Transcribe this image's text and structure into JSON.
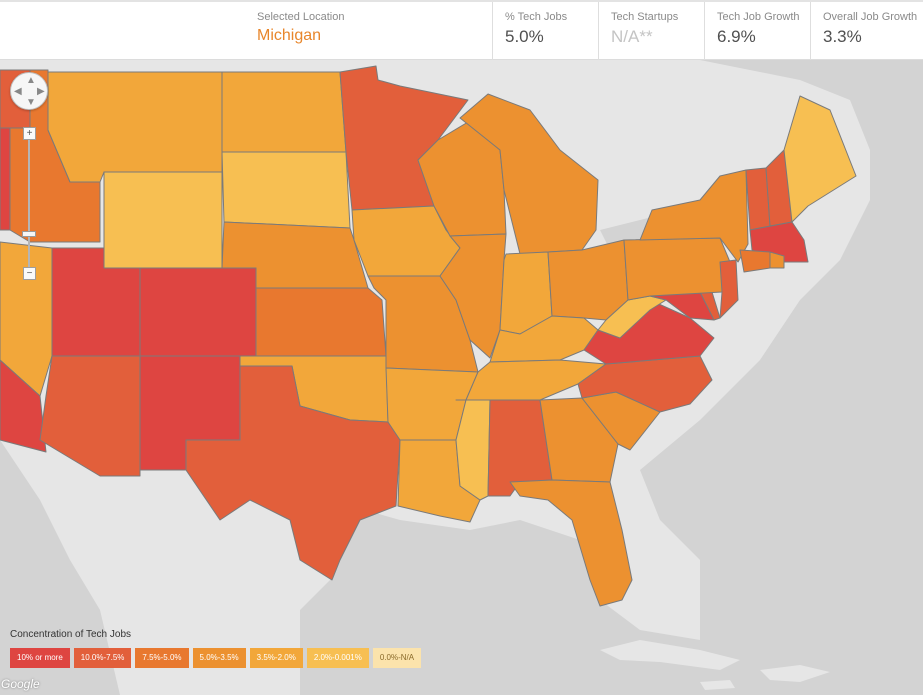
{
  "header": {
    "selected_location_label": "Selected Location",
    "selected_location_value": "Michigan",
    "stats": [
      {
        "label": "% Tech Jobs",
        "value": "5.0%"
      },
      {
        "label": "Tech Startups",
        "value": "N/A**"
      },
      {
        "label": "Tech Job Growth",
        "value": "6.9%"
      },
      {
        "label": "Overall Job Growth",
        "value": "3.3%"
      }
    ]
  },
  "map_controls": {
    "zoom_in": "+",
    "zoom_out": "−",
    "pan_icon": "pan-arrows-icon"
  },
  "legend": {
    "title": "Concentration of Tech Jobs",
    "items": [
      {
        "label": "10% or more",
        "color": "#de4541"
      },
      {
        "label": "10.0%-7.5%",
        "color": "#e25f3b"
      },
      {
        "label": "7.5%-5.0%",
        "color": "#e8782f"
      },
      {
        "label": "5.0%-3.5%",
        "color": "#ec9130"
      },
      {
        "label": "3.5%-2.0%",
        "color": "#f2a73a"
      },
      {
        "label": "2.0%-0.001%",
        "color": "#f7bf52"
      },
      {
        "label": "0.0%-N/A",
        "color": "#fbe3ac"
      }
    ]
  },
  "attribution": "Google",
  "colors": {
    "land": "#e7e7e7",
    "water": "#d2d2d2",
    "accent": "#e8862b"
  }
}
